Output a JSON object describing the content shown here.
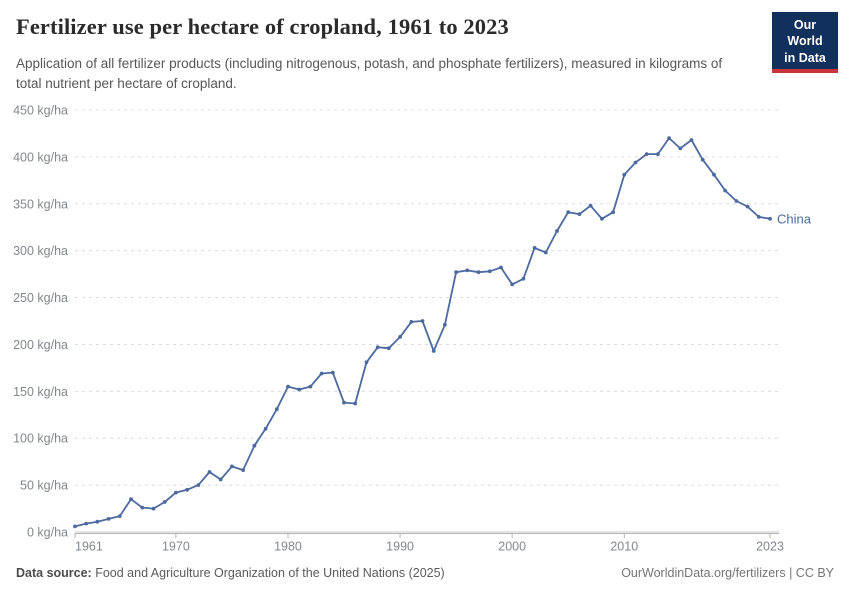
{
  "header": {
    "title": "Fertilizer use per hectare of cropland, 1961 to 2023",
    "subtitle": "Application of all fertilizer products (including nitrogenous, potash, and phosphate fertilizers), measured in kilograms of total nutrient per hectare of cropland.",
    "logo": {
      "line1": "Our World",
      "line2": "in Data"
    }
  },
  "chart_data": {
    "type": "line",
    "title": "Fertilizer use per hectare of cropland, 1961 to 2023",
    "xlabel": "",
    "ylabel": "kg/ha",
    "ylim": [
      0,
      450
    ],
    "ytick_step": 50,
    "ytick_suffix": " kg/ha",
    "xticks": [
      1961,
      1970,
      1980,
      1990,
      2000,
      2010,
      2023
    ],
    "grid": "horizontal-dashed",
    "legend": "end-of-line-label",
    "x": [
      1961,
      1962,
      1963,
      1964,
      1965,
      1966,
      1967,
      1968,
      1969,
      1970,
      1971,
      1972,
      1973,
      1974,
      1975,
      1976,
      1977,
      1978,
      1979,
      1980,
      1981,
      1982,
      1983,
      1984,
      1985,
      1986,
      1987,
      1988,
      1989,
      1990,
      1991,
      1992,
      1993,
      1994,
      1995,
      1996,
      1997,
      1998,
      1999,
      2000,
      2001,
      2002,
      2003,
      2004,
      2005,
      2006,
      2007,
      2008,
      2009,
      2010,
      2011,
      2012,
      2013,
      2014,
      2015,
      2016,
      2017,
      2018,
      2019,
      2020,
      2021,
      2022,
      2023
    ],
    "series": [
      {
        "name": "China",
        "color": "#4c6a9f",
        "values": [
          6,
          9,
          11,
          14,
          17,
          35,
          26,
          25,
          32,
          42,
          45,
          50,
          64,
          56,
          70,
          66,
          92,
          110,
          131,
          155,
          152,
          155,
          169,
          170,
          138,
          137,
          181,
          197,
          196,
          208,
          224,
          225,
          193,
          221,
          277,
          279,
          277,
          278,
          282,
          264,
          270,
          303,
          298,
          321,
          341,
          339,
          348,
          334,
          341,
          381,
          394,
          403,
          403,
          420,
          409,
          418,
          397,
          381,
          364,
          353,
          347,
          336,
          334
        ]
      }
    ]
  },
  "footer": {
    "datasource_label": "Data source:",
    "datasource_text": " Food and Agriculture Organization of the United Nations (2025)",
    "link_text": "OurWorldinData.org/fertilizers",
    "divider": " | ",
    "license": "CC BY"
  },
  "colors": {
    "series_blue": "#4c6a9f",
    "grid": "#dcdcdc",
    "axis": "#b3b3b3",
    "tick_text": "#83878b",
    "logo_navy": "#12305c",
    "logo_red": "#c8353a"
  }
}
